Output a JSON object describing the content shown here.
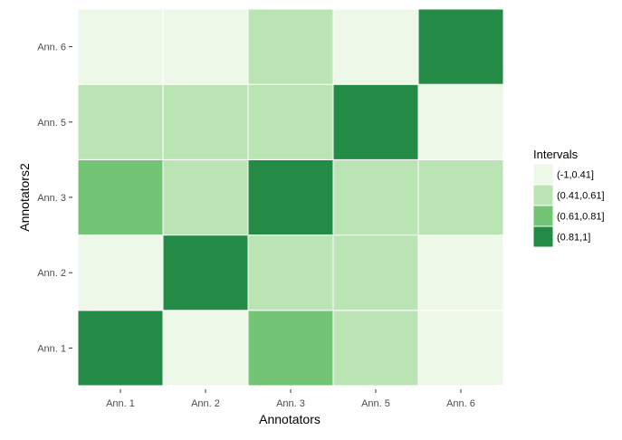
{
  "chart_data": {
    "type": "heatmap",
    "title": "",
    "xlabel": "Annotators",
    "ylabel": "Annotators2",
    "x_categories": [
      "Ann. 1",
      "Ann. 2",
      "Ann. 3",
      "Ann. 5",
      "Ann. 6"
    ],
    "y_categories": [
      "Ann. 1",
      "Ann. 2",
      "Ann. 3",
      "Ann. 5",
      "Ann. 6"
    ],
    "cells": [
      {
        "x": "Ann. 1",
        "y": "Ann. 1",
        "interval": "(0.81,1]"
      },
      {
        "x": "Ann. 2",
        "y": "Ann. 1",
        "interval": "(-1,0.41]"
      },
      {
        "x": "Ann. 3",
        "y": "Ann. 1",
        "interval": "(0.61,0.81]"
      },
      {
        "x": "Ann. 5",
        "y": "Ann. 1",
        "interval": "(0.41,0.61]"
      },
      {
        "x": "Ann. 6",
        "y": "Ann. 1",
        "interval": "(-1,0.41]"
      },
      {
        "x": "Ann. 1",
        "y": "Ann. 2",
        "interval": "(-1,0.41]"
      },
      {
        "x": "Ann. 2",
        "y": "Ann. 2",
        "interval": "(0.81,1]"
      },
      {
        "x": "Ann. 3",
        "y": "Ann. 2",
        "interval": "(0.41,0.61]"
      },
      {
        "x": "Ann. 5",
        "y": "Ann. 2",
        "interval": "(0.41,0.61]"
      },
      {
        "x": "Ann. 6",
        "y": "Ann. 2",
        "interval": "(-1,0.41]"
      },
      {
        "x": "Ann. 1",
        "y": "Ann. 3",
        "interval": "(0.61,0.81]"
      },
      {
        "x": "Ann. 2",
        "y": "Ann. 3",
        "interval": "(0.41,0.61]"
      },
      {
        "x": "Ann. 3",
        "y": "Ann. 3",
        "interval": "(0.81,1]"
      },
      {
        "x": "Ann. 5",
        "y": "Ann. 3",
        "interval": "(0.41,0.61]"
      },
      {
        "x": "Ann. 6",
        "y": "Ann. 3",
        "interval": "(0.41,0.61]"
      },
      {
        "x": "Ann. 1",
        "y": "Ann. 5",
        "interval": "(0.41,0.61]"
      },
      {
        "x": "Ann. 2",
        "y": "Ann. 5",
        "interval": "(0.41,0.61]"
      },
      {
        "x": "Ann. 3",
        "y": "Ann. 5",
        "interval": "(0.41,0.61]"
      },
      {
        "x": "Ann. 5",
        "y": "Ann. 5",
        "interval": "(0.81,1]"
      },
      {
        "x": "Ann. 6",
        "y": "Ann. 5",
        "interval": "(-1,0.41]"
      },
      {
        "x": "Ann. 1",
        "y": "Ann. 6",
        "interval": "(-1,0.41]"
      },
      {
        "x": "Ann. 2",
        "y": "Ann. 6",
        "interval": "(-1,0.41]"
      },
      {
        "x": "Ann. 3",
        "y": "Ann. 6",
        "interval": "(0.41,0.61]"
      },
      {
        "x": "Ann. 5",
        "y": "Ann. 6",
        "interval": "(-1,0.41]"
      },
      {
        "x": "Ann. 6",
        "y": "Ann. 6",
        "interval": "(0.81,1]"
      }
    ],
    "legend": {
      "title": "Intervals",
      "placement": "right",
      "items": [
        {
          "label": "(-1,0.41]",
          "color": "#edf8e9"
        },
        {
          "label": "(0.41,0.61]",
          "color": "#bae4b3"
        },
        {
          "label": "(0.61,0.81]",
          "color": "#74c476"
        },
        {
          "label": "(0.81,1]",
          "color": "#238b45"
        }
      ]
    },
    "grid": false,
    "background_color": "#ffffff"
  }
}
